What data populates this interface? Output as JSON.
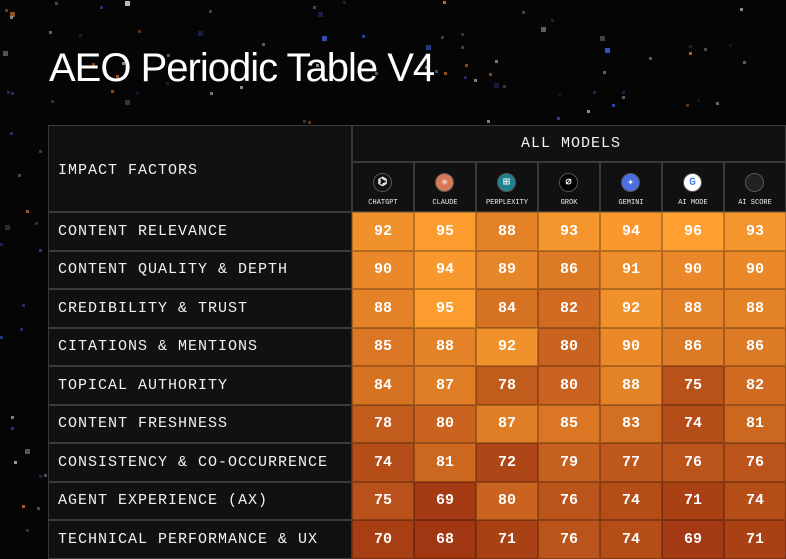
{
  "title": "AEO Periodic Table V4",
  "table": {
    "factor_header": "IMPACT FACTORS",
    "group_header": "ALL MODELS",
    "columns": [
      "CHATGPT",
      "CLAUDE",
      "PERPLEXITY",
      "GROK",
      "GEMINI",
      "AI MODE",
      "AI SCORE"
    ],
    "rows": [
      {
        "label": "CONTENT RELEVANCE",
        "values": [
          92,
          95,
          88,
          93,
          94,
          96,
          93
        ]
      },
      {
        "label": "CONTENT QUALITY & DEPTH",
        "values": [
          90,
          94,
          89,
          86,
          91,
          90,
          90
        ]
      },
      {
        "label": "CREDIBILITY & TRUST",
        "values": [
          88,
          95,
          84,
          82,
          92,
          88,
          88
        ]
      },
      {
        "label": "CITATIONS & MENTIONS",
        "values": [
          85,
          88,
          92,
          80,
          90,
          86,
          86
        ]
      },
      {
        "label": "TOPICAL AUTHORITY",
        "values": [
          84,
          87,
          78,
          80,
          88,
          75,
          82
        ]
      },
      {
        "label": "CONTENT FRESHNESS",
        "values": [
          78,
          80,
          87,
          85,
          83,
          74,
          81
        ]
      },
      {
        "label": "CONSISTENCY & CO-OCCURRENCE",
        "values": [
          74,
          81,
          72,
          79,
          77,
          76,
          76
        ]
      },
      {
        "label": "AGENT EXPERIENCE (AX)",
        "values": [
          75,
          69,
          80,
          76,
          74,
          71,
          74
        ]
      },
      {
        "label": "TECHNICAL PERFORMANCE & UX",
        "values": [
          70,
          68,
          71,
          76,
          74,
          69,
          71
        ]
      }
    ]
  }
}
